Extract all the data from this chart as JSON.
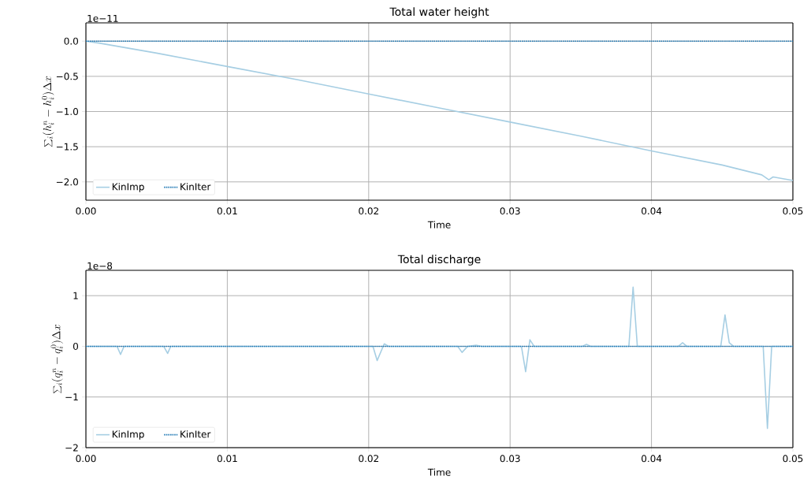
{
  "chart_data": [
    {
      "type": "line",
      "title": "Total water height",
      "xlabel": "Time",
      "ylabel": "\\sum_i (h_i^n - h_i^0)\\Delta x",
      "annotations": [
        "1e−11"
      ],
      "xlim": [
        0,
        0.05
      ],
      "ylim": [
        -2.26,
        0.26
      ],
      "xticks": [
        {
          "value": 0,
          "label": "0.00"
        },
        0.01,
        0.02,
        0.03,
        0.04,
        0.05
      ],
      "yticks": [
        {
          "value": -2,
          "label": "−2.0"
        },
        {
          "value": -1.5,
          "label": "−1.5"
        },
        {
          "value": -1,
          "label": "−1.0"
        },
        {
          "value": -0.5,
          "label": "−0.5"
        },
        {
          "value": 0,
          "label": "0.0"
        }
      ],
      "grid": true,
      "legend": "bottom left",
      "series": [
        {
          "name": "KinImp",
          "color": "#a6cee3",
          "line_style": "solid",
          "x": [
            0,
            0.001,
            0.005,
            0.01,
            0.015,
            0.02,
            0.025,
            0.03,
            0.035,
            0.04,
            0.045,
            0.0478,
            0.0483,
            0.0486,
            0.05
          ],
          "values": [
            0,
            -0.03,
            -0.17,
            -0.36,
            -0.55,
            -0.75,
            -0.95,
            -1.15,
            -1.35,
            -1.56,
            -1.76,
            -1.9,
            -1.97,
            -1.93,
            -1.98
          ]
        },
        {
          "name": "KinIter",
          "color": "#1f78b4",
          "line_style": "dotted",
          "x": [
            0,
            0.05
          ],
          "values": [
            0,
            0
          ]
        }
      ]
    },
    {
      "type": "line",
      "title": "Total discharge",
      "xlabel": "Time",
      "ylabel": "\\sum_i (q_i^n - q_i^0)\\Delta x",
      "annotations": [
        "1e−8"
      ],
      "xlim": [
        0,
        0.05
      ],
      "ylim": [
        -2,
        1.5
      ],
      "xticks": [
        {
          "value": 0,
          "label": "0.00"
        },
        0.01,
        0.02,
        0.03,
        0.04,
        0.05
      ],
      "yticks": [
        {
          "value": -2,
          "label": "−2"
        },
        {
          "value": -1,
          "label": "−1"
        },
        0,
        1
      ],
      "grid": true,
      "legend": "bottom left",
      "series": [
        {
          "name": "KinImp",
          "color": "#a6cee3",
          "line_style": "solid",
          "x": [
            0,
            0.0022,
            0.00245,
            0.0027,
            0.0055,
            0.00578,
            0.006,
            0.0203,
            0.0206,
            0.0211,
            0.0214,
            0.0263,
            0.0266,
            0.027,
            0.0276,
            0.028,
            0.0308,
            0.0311,
            0.0314,
            0.0317,
            0.0351,
            0.0354,
            0.0357,
            0.0384,
            0.0387,
            0.039,
            0.0419,
            0.0422,
            0.0425,
            0.0449,
            0.0452,
            0.0455,
            0.0458,
            0.0479,
            0.0482,
            0.0485,
            0.05
          ],
          "values": [
            0,
            0,
            -0.16,
            0,
            0,
            -0.14,
            0,
            0,
            -0.28,
            0.05,
            0,
            0,
            -0.12,
            0,
            0.02,
            0,
            0,
            -0.5,
            0.13,
            0,
            0,
            0.04,
            0,
            0,
            1.17,
            0,
            0,
            0.07,
            0,
            0,
            0.62,
            0.07,
            0,
            0,
            -1.62,
            0,
            0
          ]
        },
        {
          "name": "KinIter",
          "color": "#1f78b4",
          "line_style": "dotted",
          "x": [
            0,
            0.05
          ],
          "values": [
            0,
            0
          ]
        }
      ]
    }
  ]
}
